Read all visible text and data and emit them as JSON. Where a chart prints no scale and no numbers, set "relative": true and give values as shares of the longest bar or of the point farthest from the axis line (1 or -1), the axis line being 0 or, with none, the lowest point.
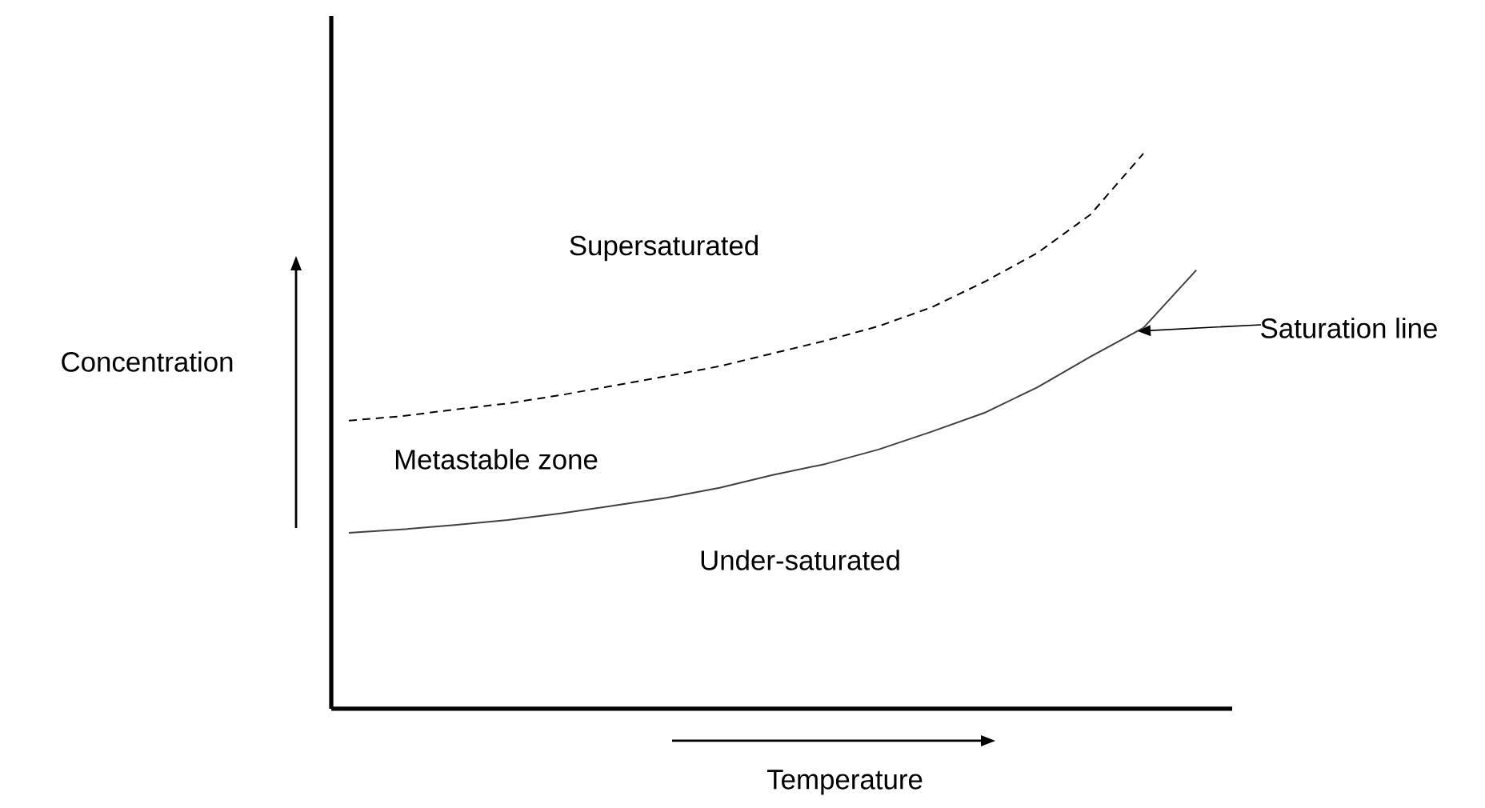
{
  "chart_data": {
    "type": "line",
    "relative": true,
    "xlabel": "Temperature",
    "ylabel": "Concentration",
    "categories": [
      null,
      null,
      null,
      null,
      null,
      null,
      null,
      null,
      null,
      null,
      null,
      null,
      null,
      null,
      null,
      null,
      null
    ],
    "series": [
      {
        "color": "#000000",
        "line_style": "dashed",
        "values": [
          0.519,
          0.527,
          0.539,
          0.55,
          0.565,
          0.582,
          0.599,
          0.617,
          0.64,
          0.663,
          0.689,
          0.723,
          0.769,
          0.821,
          0.89,
          1.0,
          null
        ]
      },
      {
        "color": "#404040",
        "line_style": "solid",
        "values": [
          0.317,
          0.323,
          0.331,
          0.34,
          0.352,
          0.366,
          0.38,
          0.398,
          0.421,
          0.441,
          0.467,
          0.499,
          0.533,
          0.579,
          0.634,
          0.686,
          0.79
        ]
      }
    ],
    "annotations": [
      "Supersaturated",
      "Metastable zone",
      "Under-saturated",
      "Saturation line"
    ]
  }
}
